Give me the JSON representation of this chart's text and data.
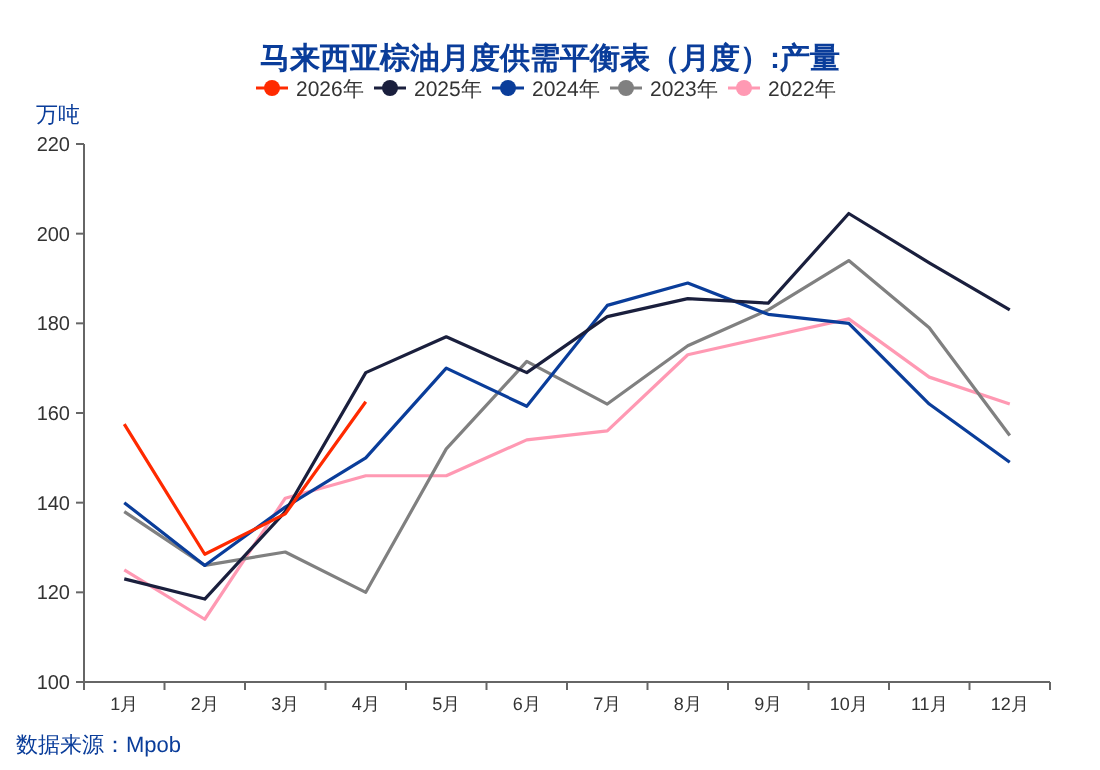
{
  "chart_data": {
    "type": "line",
    "title": "马来西亚棕油月度供需平衡表（月度）:产量",
    "ylabel": "万吨",
    "categories": [
      "1月",
      "2月",
      "3月",
      "4月",
      "5月",
      "6月",
      "7月",
      "8月",
      "9月",
      "10月",
      "11月",
      "12月"
    ],
    "series": [
      {
        "name": "2026年",
        "color": "#ff2a00",
        "values": [
          157.5,
          128.5,
          137.5,
          162.5,
          null,
          null,
          null,
          null,
          null,
          null,
          null,
          null
        ]
      },
      {
        "name": "2025年",
        "color": "#1a1f3d",
        "values": [
          123,
          118.5,
          138,
          169,
          177,
          169,
          181.5,
          185.5,
          184.5,
          204.5,
          193.5,
          183
        ]
      },
      {
        "name": "2024年",
        "color": "#0a3d9a",
        "values": [
          140,
          126,
          139,
          150,
          170,
          161.5,
          184,
          189,
          182,
          180,
          162,
          149
        ]
      },
      {
        "name": "2023年",
        "color": "#808080",
        "values": [
          138,
          126,
          129,
          120,
          152,
          171.5,
          162,
          175,
          183,
          194,
          179,
          155
        ]
      },
      {
        "name": "2022年",
        "color": "#ff99b3",
        "values": [
          125,
          114,
          141,
          146,
          146,
          154,
          156,
          173,
          177,
          181,
          168,
          162
        ]
      }
    ],
    "ylim": [
      100,
      220
    ],
    "yticks": [
      100,
      120,
      140,
      160,
      180,
      200,
      220
    ],
    "grid": false,
    "legend": "top",
    "line_style": "solid",
    "annotations": [
      "数据来源：Mpob"
    ]
  }
}
